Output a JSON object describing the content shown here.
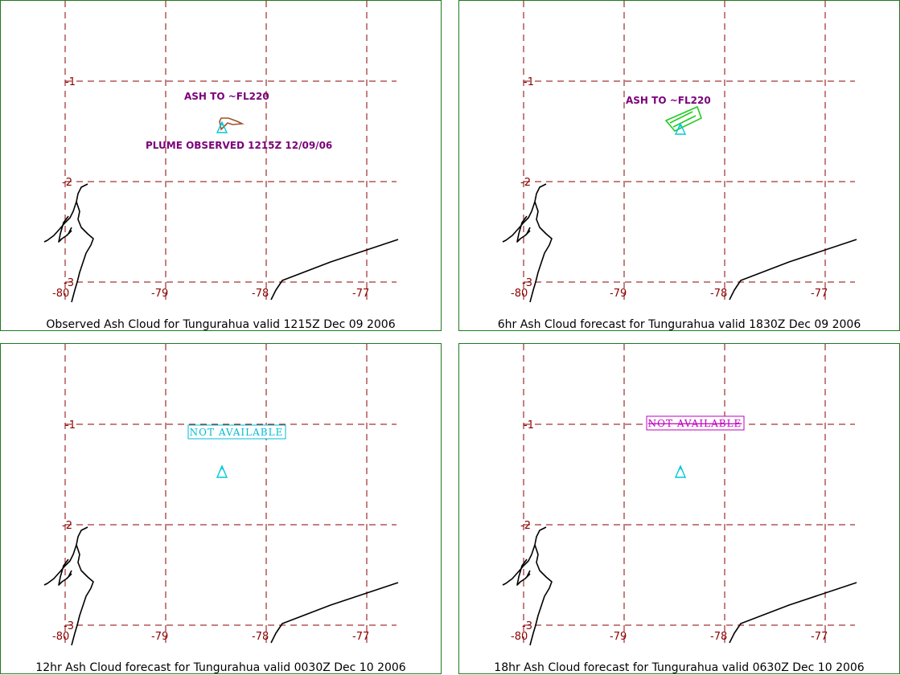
{
  "colors": {
    "frame": "#1f7a1f",
    "grid": "#8b0000",
    "volcano": "#00c8d8",
    "ash_label": "#7a007a",
    "observed_plume": "#a0522d",
    "forecast_6hr": "#22cc22",
    "na_12hr": "#00bcd4",
    "na_18hr": "#c000c0"
  },
  "grid_labels": {
    "lat": [
      "-1",
      "-2",
      "-3"
    ],
    "lon": [
      "-80",
      "-79",
      "-78",
      "-77"
    ]
  },
  "panels": [
    {
      "caption": "Observed Ash Cloud for Tungurahua valid 1215Z Dec 09 2006",
      "ash_label": "ASH TO ~FL220",
      "plume_label": "PLUME OBSERVED 1215Z 12/09/06",
      "status": ""
    },
    {
      "caption": "6hr Ash Cloud forecast for Tungurahua valid 1830Z Dec 09 2006",
      "ash_label": "ASH TO ~FL220",
      "plume_label": "",
      "status": ""
    },
    {
      "caption": "12hr Ash Cloud forecast for Tungurahua valid 0030Z Dec 10 2006",
      "ash_label": "",
      "plume_label": "",
      "status": "NOT AVAILABLE"
    },
    {
      "caption": "18hr Ash Cloud forecast for Tungurahua valid 0630Z Dec 10 2006",
      "ash_label": "",
      "plume_label": "",
      "status": "NOT AVAILABLE"
    }
  ]
}
